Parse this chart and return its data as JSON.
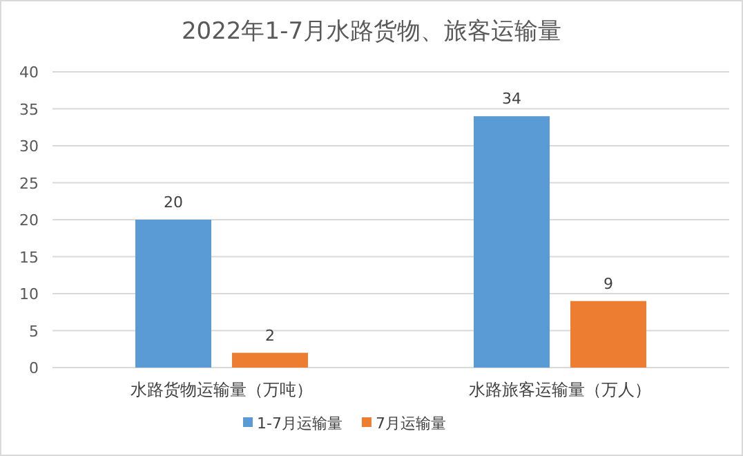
{
  "chart_data": {
    "type": "bar",
    "title": "2022年1-7月水路货物、旅客运输量",
    "categories": [
      "水路货物运输量（万吨）",
      "水路旅客运输量（万人）"
    ],
    "series": [
      {
        "name": "1-7月运输量",
        "color": "#5b9bd5",
        "values": [
          20,
          34
        ]
      },
      {
        "name": "7月运输量",
        "color": "#ed7d31",
        "values": [
          2,
          9
        ]
      }
    ],
    "ylim": [
      0,
      40
    ],
    "yticks": [
      0,
      5,
      10,
      15,
      20,
      25,
      30,
      35,
      40
    ],
    "grid": "y",
    "legend": "bottom",
    "data_labels": true
  }
}
